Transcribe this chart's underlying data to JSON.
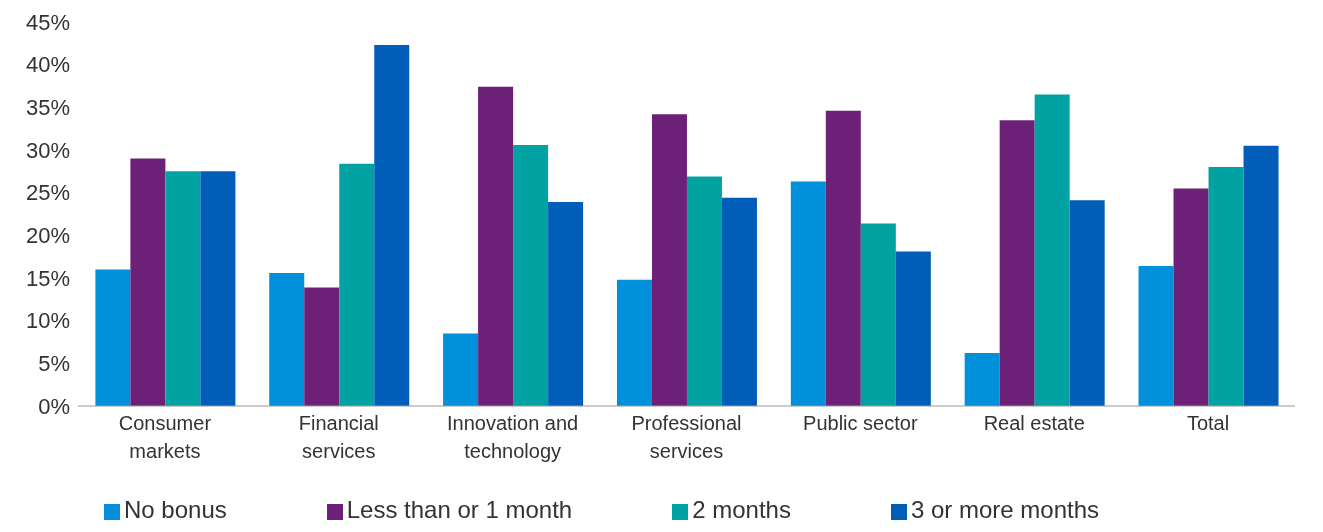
{
  "chart_data": {
    "type": "bar",
    "categories": [
      "Consumer markets",
      "Financial services",
      "Innovation and technology",
      "Professional services",
      "Public sector",
      "Real estate",
      "Total"
    ],
    "series": [
      {
        "name": "No bonus",
        "color": "#0091da",
        "values": [
          16.0,
          15.6,
          8.5,
          14.8,
          26.3,
          6.2,
          16.4
        ]
      },
      {
        "name": "Less than or 1 month",
        "color": "#6d2077",
        "values": [
          29.0,
          13.9,
          37.4,
          34.2,
          34.6,
          33.5,
          25.5
        ]
      },
      {
        "name": "2 months",
        "color": "#00a3a1",
        "values": [
          27.5,
          28.4,
          30.6,
          26.9,
          21.4,
          36.5,
          28.0
        ]
      },
      {
        "name": "3 or more months",
        "color": "#005eb8",
        "values": [
          27.5,
          42.3,
          23.9,
          24.4,
          18.1,
          24.1,
          30.5
        ]
      }
    ],
    "ylim": [
      0,
      45
    ],
    "yticks": [
      {
        "value": 0,
        "label": "0%"
      },
      {
        "value": 5,
        "label": "5%"
      },
      {
        "value": 10,
        "label": "10%"
      },
      {
        "value": 15,
        "label": "15%"
      },
      {
        "value": 20,
        "label": "20%"
      },
      {
        "value": 25,
        "label": "25%"
      },
      {
        "value": 30,
        "label": "30%"
      },
      {
        "value": 35,
        "label": "35%"
      },
      {
        "value": 40,
        "label": "40%"
      },
      {
        "value": 45,
        "label": "45%"
      }
    ],
    "grid": false,
    "legend": "bottom"
  }
}
